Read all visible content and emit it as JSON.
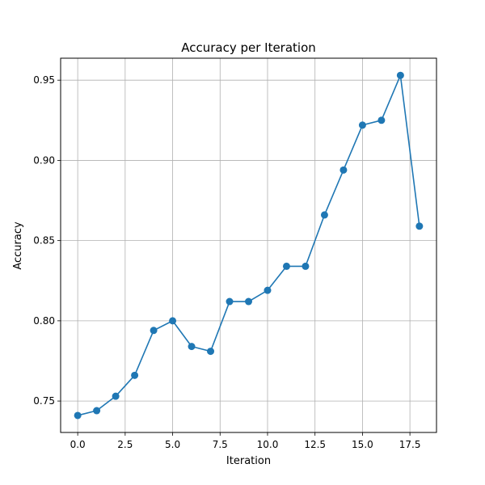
{
  "chart_data": {
    "type": "line",
    "title": "Accuracy per Iteration",
    "xlabel": "Iteration",
    "ylabel": "Accuracy",
    "xlim": [
      -0.9,
      18.9
    ],
    "ylim": [
      0.7304,
      0.9637
    ],
    "xticks": [
      0.0,
      2.5,
      5.0,
      7.5,
      10.0,
      12.5,
      15.0,
      17.5
    ],
    "xtick_labels": [
      "0.0",
      "2.5",
      "5.0",
      "7.5",
      "10.0",
      "12.5",
      "15.0",
      "17.5"
    ],
    "yticks": [
      0.75,
      0.8,
      0.85,
      0.9,
      0.95
    ],
    "ytick_labels": [
      "0.75",
      "0.80",
      "0.85",
      "0.90",
      "0.95"
    ],
    "grid": true,
    "series": [
      {
        "color": "#1f77b4",
        "marker": "circle",
        "x": [
          0,
          1,
          2,
          3,
          4,
          5,
          6,
          7,
          8,
          9,
          10,
          11,
          12,
          13,
          14,
          15,
          16,
          17,
          18
        ],
        "y": [
          0.741,
          0.744,
          0.753,
          0.766,
          0.794,
          0.8,
          0.784,
          0.781,
          0.812,
          0.812,
          0.819,
          0.834,
          0.834,
          0.866,
          0.894,
          0.922,
          0.925,
          0.953,
          0.859
        ]
      }
    ]
  }
}
